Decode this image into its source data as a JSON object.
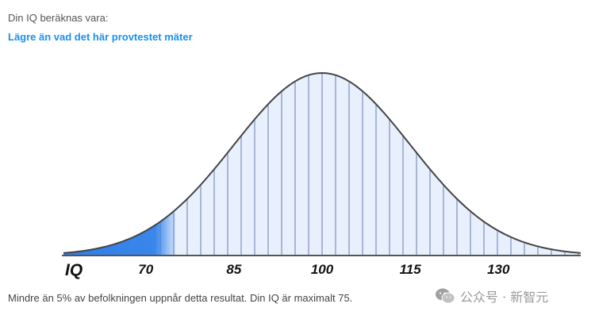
{
  "header": {
    "intro": "Din IQ beräknas vara:",
    "verdict": "Lägre än vad det här provtestet mäter"
  },
  "chart_data": {
    "type": "area",
    "title": "",
    "xlabel": "IQ",
    "ylabel": "",
    "distribution": "normal",
    "mean": 100,
    "sd": 15,
    "xlim": [
      56,
      144
    ],
    "x_ticks": [
      70,
      85,
      100,
      115,
      130
    ],
    "highlight": {
      "from": 56,
      "to": 75,
      "color": "#2f7fe8"
    },
    "curve_fill": "#e9f0fd",
    "stripe_color": "#a8b6d6",
    "outline_color": "#444444",
    "grid": false
  },
  "result": {
    "text": "Mindre än 5% av befolkningen uppnår detta resultat. Din IQ är maximalt 75."
  },
  "watermark": {
    "text": "公众号 · 新智元",
    "icon": "wechat-icon"
  }
}
